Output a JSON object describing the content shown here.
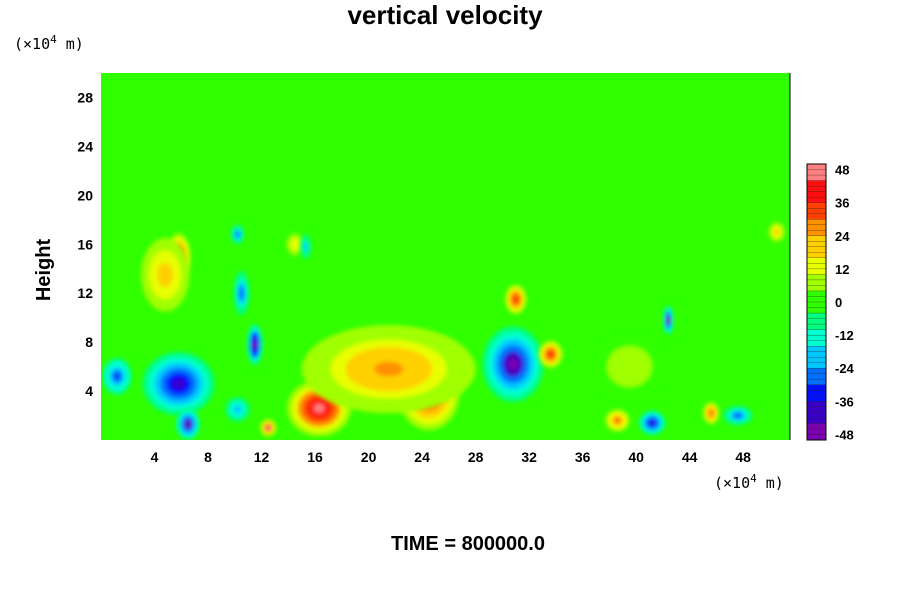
{
  "chart_data": {
    "type": "heatmap",
    "title": "vertical velocity",
    "ylabel": "Height",
    "x_unit_label": {
      "prefix": "(×10",
      "exp": "4",
      "suffix": " m)"
    },
    "y_unit_label": {
      "prefix": "(×10",
      "exp": "4",
      "suffix": " m)"
    },
    "xlim": [
      0,
      51.5
    ],
    "ylim": [
      0,
      30
    ],
    "x_ticks": [
      "4",
      "8",
      "12",
      "16",
      "20",
      "24",
      "28",
      "32",
      "36",
      "40",
      "44",
      "48"
    ],
    "y_ticks": [
      "4",
      "8",
      "12",
      "16",
      "20",
      "24",
      "28"
    ],
    "colorbar": {
      "range": [
        -50,
        50
      ],
      "tick_labels": [
        "48",
        "36",
        "24",
        "12",
        "0",
        "-12",
        "-24",
        "-36",
        "-48"
      ],
      "colors": [
        "#7a00b0",
        "#3a00c8",
        "#0010ff",
        "#0070ff",
        "#00c8ff",
        "#00ffd0",
        "#00ff80",
        "#30ff00",
        "#a0ff00",
        "#e8ff00",
        "#ffd000",
        "#ff9000",
        "#ff4000",
        "#ff1010",
        "#ff8080"
      ]
    },
    "background_value": 0,
    "features": [
      {
        "x": 16.3,
        "y": 2.6,
        "value": 48,
        "rx": 2.4,
        "ry": 2.3
      },
      {
        "x": 24.5,
        "y": 3.8,
        "value": 36,
        "rx": 2.3,
        "ry": 3.0
      },
      {
        "x": 21.5,
        "y": 5.8,
        "value": 26,
        "rx": 6.5,
        "ry": 3.6
      },
      {
        "x": 30.8,
        "y": 6.2,
        "value": -44,
        "rx": 2.3,
        "ry": 3.1
      },
      {
        "x": 33.6,
        "y": 7.0,
        "value": 40,
        "rx": 0.9,
        "ry": 1.1
      },
      {
        "x": 31.0,
        "y": 11.5,
        "value": 36,
        "rx": 0.8,
        "ry": 1.2
      },
      {
        "x": 12.5,
        "y": 1.0,
        "value": 44,
        "rx": 0.6,
        "ry": 0.7
      },
      {
        "x": 11.5,
        "y": 7.8,
        "value": -48,
        "rx": 0.6,
        "ry": 1.7
      },
      {
        "x": 5.8,
        "y": 4.6,
        "value": -40,
        "rx": 2.7,
        "ry": 2.6
      },
      {
        "x": 6.5,
        "y": 1.3,
        "value": -44,
        "rx": 0.9,
        "ry": 1.3
      },
      {
        "x": 5.8,
        "y": 15.0,
        "value": 40,
        "rx": 0.9,
        "ry": 1.9
      },
      {
        "x": 4.8,
        "y": 13.5,
        "value": 20,
        "rx": 1.8,
        "ry": 3.0
      },
      {
        "x": 10.2,
        "y": 16.8,
        "value": -30,
        "rx": 0.5,
        "ry": 0.8
      },
      {
        "x": 10.5,
        "y": 12.0,
        "value": -30,
        "rx": 0.6,
        "ry": 1.8
      },
      {
        "x": 1.2,
        "y": 5.2,
        "value": -32,
        "rx": 1.1,
        "ry": 1.5
      },
      {
        "x": 10.2,
        "y": 2.5,
        "value": -22,
        "rx": 0.9,
        "ry": 1.0
      },
      {
        "x": 38.6,
        "y": 1.6,
        "value": 30,
        "rx": 0.9,
        "ry": 0.9
      },
      {
        "x": 41.2,
        "y": 1.4,
        "value": -38,
        "rx": 1.0,
        "ry": 1.0
      },
      {
        "x": 45.6,
        "y": 2.2,
        "value": 34,
        "rx": 0.6,
        "ry": 0.9
      },
      {
        "x": 47.6,
        "y": 2.0,
        "value": -30,
        "rx": 1.1,
        "ry": 0.8
      },
      {
        "x": 42.4,
        "y": 9.8,
        "value": -46,
        "rx": 0.4,
        "ry": 1.2
      },
      {
        "x": 50.5,
        "y": 17.0,
        "value": 22,
        "rx": 0.6,
        "ry": 0.8
      },
      {
        "x": 39.5,
        "y": 6.0,
        "value": 8,
        "rx": 2.5,
        "ry": 2.5
      },
      {
        "x": 14.5,
        "y": 16.0,
        "value": 16,
        "rx": 0.7,
        "ry": 1.0
      },
      {
        "x": 15.3,
        "y": 15.8,
        "value": -20,
        "rx": 0.4,
        "ry": 1.0
      }
    ]
  },
  "footer": {
    "time_label": "TIME = 800000.0"
  }
}
